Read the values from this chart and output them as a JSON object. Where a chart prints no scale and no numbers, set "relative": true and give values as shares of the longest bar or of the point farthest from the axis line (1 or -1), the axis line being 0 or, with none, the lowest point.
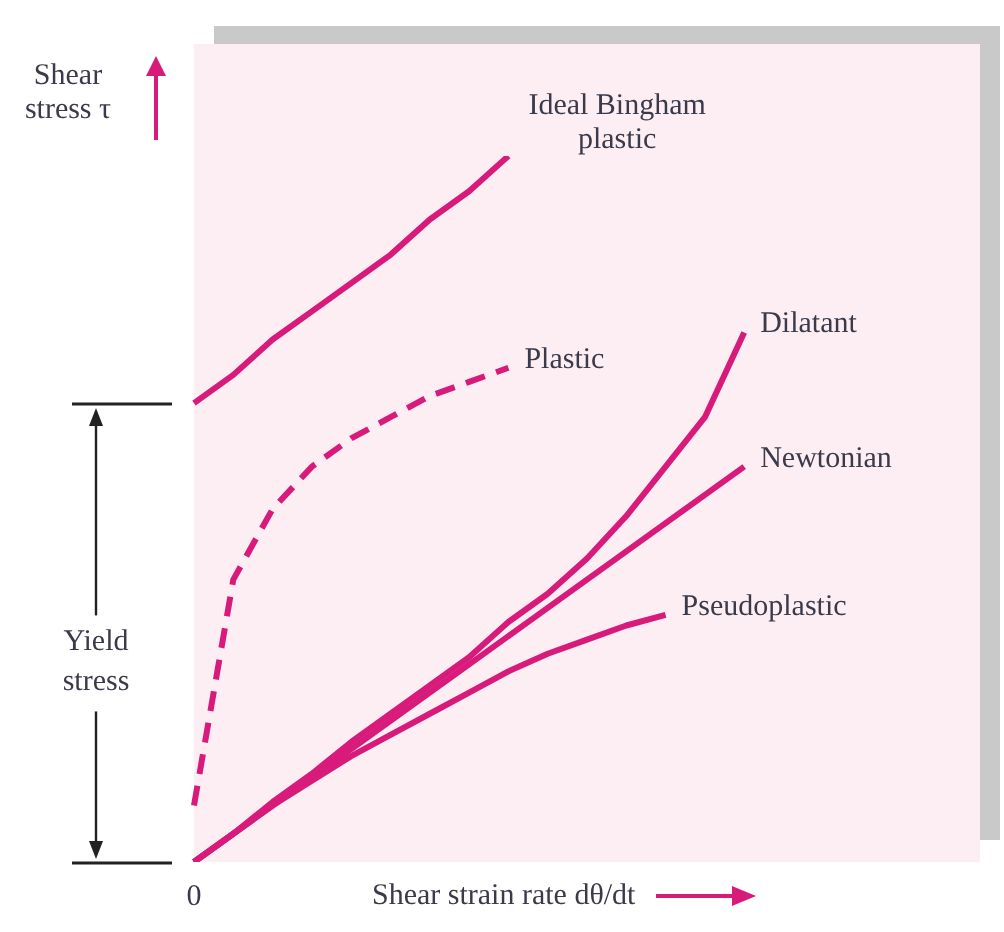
{
  "chart_data": {
    "type": "line",
    "relative": true,
    "xlabel": "Shear strain rate dθ/dt",
    "ylabel": "Shear stress τ",
    "legend": false,
    "marker": "none",
    "categories": [
      null,
      null,
      null,
      null,
      null,
      null,
      null,
      null,
      null,
      null,
      null,
      null,
      null,
      null,
      null,
      null,
      null,
      null,
      null,
      null,
      null
    ],
    "annotations": [
      "Yield stress",
      "0"
    ],
    "series": [
      {
        "name": "Ideal Bingham plastic",
        "color": "#d81b7a",
        "values": [
          0.65,
          0.69,
          0.74,
          0.78,
          0.82,
          0.86,
          0.91,
          0.95,
          1.0,
          null,
          null,
          null,
          null,
          null,
          null,
          null,
          null,
          null,
          null,
          null,
          null
        ]
      },
      {
        "name": "Plastic",
        "color": "#d81b7a",
        "line_style": "dashed",
        "values": [
          0.08,
          0.4,
          0.5,
          0.56,
          0.6,
          0.63,
          0.66,
          0.68,
          0.7,
          null,
          null,
          null,
          null,
          null,
          null,
          null,
          null,
          null,
          null,
          null,
          null
        ]
      },
      {
        "name": "Dilatant",
        "color": "#d81b7a",
        "values": [
          0,
          0.04,
          0.085,
          0.125,
          0.17,
          0.21,
          0.25,
          0.29,
          0.34,
          0.38,
          0.43,
          0.49,
          0.56,
          0.63,
          0.75,
          null,
          null,
          null,
          null,
          null,
          null
        ]
      },
      {
        "name": "Newtonian",
        "color": "#d81b7a",
        "values": [
          0,
          0.04,
          0.08,
          0.12,
          0.16,
          0.2,
          0.24,
          0.28,
          0.32,
          0.36,
          0.4,
          0.44,
          0.48,
          0.52,
          0.56,
          null,
          null,
          null,
          null,
          null,
          null
        ]
      },
      {
        "name": "Pseudoplastic",
        "color": "#d81b7a",
        "values": [
          0,
          0.04,
          0.08,
          0.115,
          0.15,
          0.18,
          0.21,
          0.24,
          0.27,
          0.295,
          0.315,
          0.335,
          0.35,
          null,
          null,
          null,
          null,
          null,
          null,
          null,
          null
        ]
      }
    ]
  }
}
